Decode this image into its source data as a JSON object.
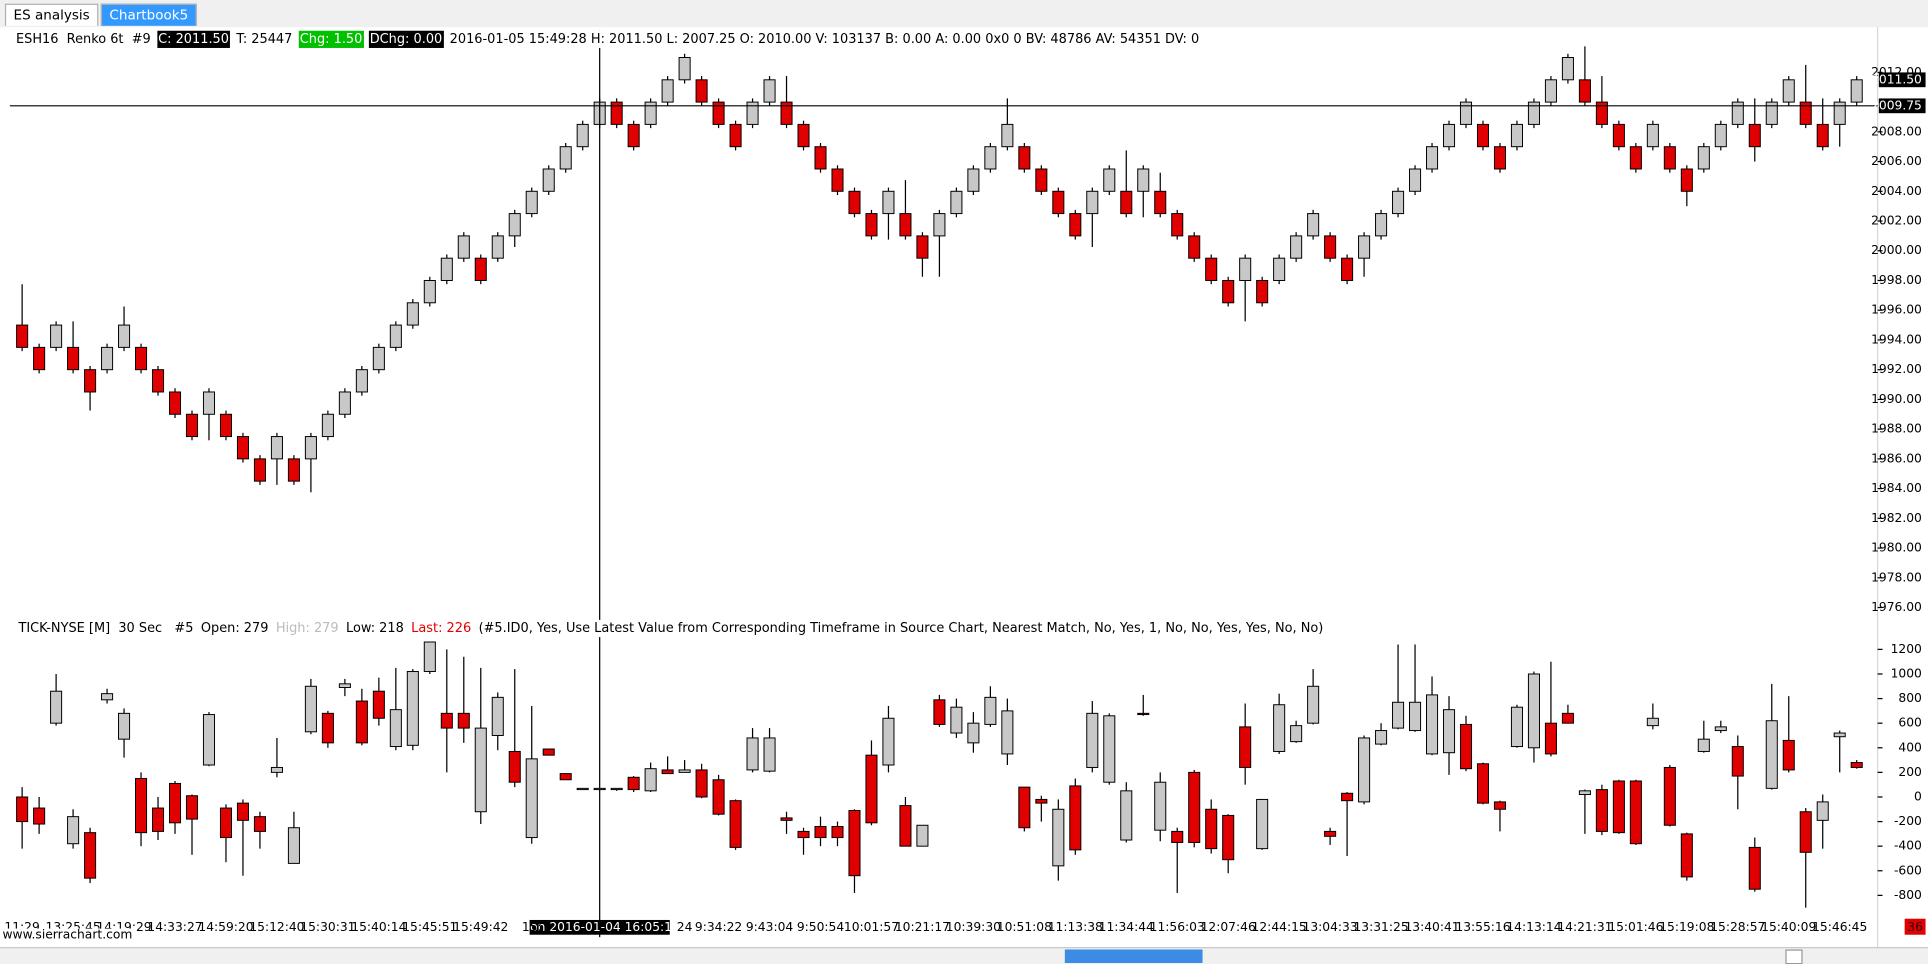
{
  "tabs": [
    {
      "label": "ES analysis",
      "selected": false
    },
    {
      "label": "Chartbook5",
      "selected": true
    }
  ],
  "watermark": "www.sierrachart.com",
  "chart_data": [
    {
      "type": "candlestick",
      "title": "ESH16  Renko 6t  #9",
      "info": [
        {
          "text": "C: 2011.50",
          "color": "#ffffff",
          "background": "#000000"
        },
        {
          "text": "T: 25447",
          "color": "#000000",
          "background": "#ffffff"
        },
        {
          "text": "Chg: 1.50",
          "color": "#ffffff",
          "background": "#00c000"
        },
        {
          "text": "DChg: 0.00",
          "color": "#ffffff",
          "background": "#000000"
        },
        {
          "text": "2016-01-05 15:49:28 H: 2011.50 L: 2007.25 O: 2010.00 V: 103137 B: 0.00 A: 0.00 0x0 0 BV: 48786 AV: 54351 DV: 0",
          "color": "#000000",
          "background": "#ffffff"
        }
      ],
      "open": [
        1995,
        1993.5,
        1993.5,
        1993.5,
        1992,
        1992,
        1993.5,
        1993.5,
        1992,
        1990.5,
        1989,
        1989,
        1989,
        1987.5,
        1986,
        1986,
        1986,
        1986,
        1987.5,
        1989,
        1990.5,
        1992,
        1993.5,
        1995,
        1996.5,
        1998,
        1999.5,
        1999.5,
        1999.5,
        2001,
        2002.5,
        2004,
        2005.5,
        2007,
        2008.5,
        2010,
        2008.5,
        2008.5,
        2010,
        2011.5,
        2011.5,
        2010,
        2008.5,
        2008.5,
        2010,
        2010,
        2008.5,
        2007,
        2005.5,
        2004,
        2002.5,
        2002.5,
        2002.5,
        2001,
        2001,
        2002.5,
        2004,
        2005.5,
        2007,
        2007,
        2005.5,
        2004,
        2002.5,
        2002.5,
        2004,
        2004,
        2004,
        2004,
        2002.5,
        2001,
        1999.5,
        1998,
        1998,
        1998,
        1998,
        1999.5,
        2001,
        2001,
        1999.5,
        1999.5,
        2001,
        2002.5,
        2004,
        2005.5,
        2007,
        2008.5,
        2008.5,
        2007,
        2007,
        2008.5,
        2010,
        2011.5,
        2011.5,
        2010,
        2008.5,
        2007,
        2007,
        2007,
        2005.5,
        2005.5,
        2007,
        2008.5,
        2008.5,
        2008.5,
        2010,
        2010,
        2008.5,
        2008.5,
        2010
      ],
      "high": [
        1997.75,
        1993.75,
        1995.25,
        1995.25,
        1992.25,
        1993.75,
        1996.25,
        1993.75,
        1992.25,
        1990.75,
        1989.25,
        1990.75,
        1989.25,
        1987.75,
        1986.25,
        1987.75,
        1986.25,
        1987.75,
        1989.25,
        1990.75,
        1992.25,
        1993.75,
        1995.25,
        1996.75,
        1998.25,
        1999.75,
        2001.25,
        1999.75,
        2001.25,
        2002.75,
        2004.25,
        2005.75,
        2007.25,
        2008.75,
        2010.25,
        2010.25,
        2008.75,
        2010.25,
        2011.75,
        2013.25,
        2011.75,
        2010.25,
        2008.75,
        2010.25,
        2011.75,
        2011.75,
        2008.75,
        2007.25,
        2005.75,
        2004.25,
        2002.75,
        2004.25,
        2004.75,
        2001.25,
        2002.75,
        2004.25,
        2005.75,
        2007.25,
        2010.25,
        2007.25,
        2005.75,
        2004.25,
        2002.75,
        2004.25,
        2005.75,
        2006.75,
        2005.75,
        2005.25,
        2002.75,
        2001.25,
        1999.75,
        1998.25,
        1999.75,
        1998.25,
        1999.75,
        2001.25,
        2002.75,
        2001.25,
        1999.75,
        2001.25,
        2002.75,
        2004.25,
        2005.75,
        2007.25,
        2008.75,
        2010.25,
        2008.75,
        2007.25,
        2008.75,
        2010.25,
        2011.75,
        2013.25,
        2013.75,
        2011.75,
        2008.75,
        2007.25,
        2008.75,
        2007.25,
        2005.75,
        2007.25,
        2008.75,
        2010.25,
        2010.25,
        2010.25,
        2011.75,
        2012.5,
        2010.25,
        2010.25,
        2011.75
      ],
      "low": [
        1993.25,
        1991.75,
        1993.25,
        1991.75,
        1989.25,
        1991.75,
        1993.25,
        1991.75,
        1990.25,
        1988.75,
        1987.25,
        1987.25,
        1987.25,
        1985.75,
        1984.25,
        1984.25,
        1984.25,
        1983.75,
        1987.25,
        1988.75,
        1990.25,
        1991.75,
        1993.25,
        1994.75,
        1996.25,
        1997.75,
        1999.25,
        1997.75,
        1999.25,
        2000.25,
        2002.25,
        2003.75,
        2005.25,
        2006.75,
        2008.25,
        2008.25,
        2006.75,
        2008.25,
        2009.75,
        2011.25,
        2009.75,
        2008.25,
        2006.75,
        2008.25,
        2009.75,
        2008.25,
        2006.75,
        2005.25,
        2003.75,
        2002.25,
        2000.75,
        2000.75,
        2000.75,
        1998.25,
        1998.25,
        2002.25,
        2003.75,
        2005.25,
        2006.75,
        2005.25,
        2003.75,
        2002.25,
        2000.75,
        2000.25,
        2003.75,
        2002.25,
        2002.25,
        2002.25,
        2000.75,
        1999.25,
        1997.75,
        1996.25,
        1995.25,
        1996.25,
        1997.75,
        1999.25,
        2000.75,
        1999.25,
        1997.75,
        1998.25,
        2000.75,
        2002.25,
        2003.75,
        2005.25,
        2006.75,
        2008.25,
        2006.75,
        2005.25,
        2006.75,
        2008.25,
        2009.75,
        2011.25,
        2009.75,
        2008.25,
        2006.75,
        2005.25,
        2006.75,
        2005.25,
        2003.0,
        2005.25,
        2006.75,
        2008.25,
        2006.0,
        2008.25,
        2009.75,
        2008.25,
        2006.75,
        2007.0,
        2009.75
      ],
      "close": [
        1993.5,
        1992,
        1995,
        1992,
        1990.5,
        1993.5,
        1995,
        1992,
        1990.5,
        1989,
        1987.5,
        1990.5,
        1987.5,
        1986,
        1984.5,
        1987.5,
        1984.5,
        1987.5,
        1989,
        1990.5,
        1992,
        1993.5,
        1995,
        1996.5,
        1998,
        1999.5,
        2001,
        1998,
        2001,
        2002.5,
        2004,
        2005.5,
        2007,
        2008.5,
        2010,
        2008.5,
        2007,
        2010,
        2011.5,
        2013,
        2010,
        2008.5,
        2007,
        2010,
        2011.5,
        2008.5,
        2007,
        2005.5,
        2004,
        2002.5,
        2001,
        2004,
        2001,
        1999.5,
        2002.5,
        2004,
        2005.5,
        2007,
        2008.5,
        2005.5,
        2004,
        2002.5,
        2001,
        2004,
        2005.5,
        2002.5,
        2005.5,
        2002.5,
        2001,
        1999.5,
        1998,
        1996.5,
        1999.5,
        1996.5,
        1999.5,
        2001,
        2002.5,
        1999.5,
        1998,
        2001,
        2002.5,
        2004,
        2005.5,
        2007,
        2008.5,
        2010,
        2007,
        2005.5,
        2008.5,
        2010,
        2011.5,
        2013,
        2010,
        2008.5,
        2007,
        2005.5,
        2008.5,
        2005.5,
        2004,
        2007,
        2008.5,
        2010,
        2007,
        2010,
        2011.5,
        2008.5,
        2007,
        2010,
        2011.5
      ],
      "up_color": "#c8c8c8",
      "down_color": "#e00000",
      "ylim": [
        1975.5,
        2014.8
      ],
      "yticks": [
        {
          "value": 2012,
          "label": "2012.00"
        },
        {
          "value": 2008,
          "label": "2008.00"
        },
        {
          "value": 2006,
          "label": "2006.00"
        },
        {
          "value": 2004,
          "label": "2004.00"
        },
        {
          "value": 2002,
          "label": "2002.00"
        },
        {
          "value": 2000,
          "label": "2000.00"
        },
        {
          "value": 1998,
          "label": "1998.00"
        },
        {
          "value": 1996,
          "label": "1996.00"
        },
        {
          "value": 1994,
          "label": "1994.00"
        },
        {
          "value": 1992,
          "label": "1992.00"
        },
        {
          "value": 1990,
          "label": "1990.00"
        },
        {
          "value": 1988,
          "label": "1988.00"
        },
        {
          "value": 1986,
          "label": "1986.00"
        },
        {
          "value": 1984,
          "label": "1984.00"
        },
        {
          "value": 1982,
          "label": "1982.00"
        },
        {
          "value": 1980,
          "label": "1980.00"
        },
        {
          "value": 1978,
          "label": "1978.00"
        },
        {
          "value": 1976,
          "label": "1976.00"
        }
      ],
      "last_price": {
        "value": 2011.5,
        "label": "2011.50"
      },
      "crosshair": {
        "value": 2009.75,
        "label": "2009.75",
        "index": 34
      }
    },
    {
      "type": "candlestick",
      "title": "TICK-NYSE [M]  30 Sec   #5",
      "info": [
        {
          "text": "Open: 279",
          "color": "#000000",
          "background": "#ffffff"
        },
        {
          "text": "High: 279",
          "color": "#bbbbbb",
          "background": "#ffffff"
        },
        {
          "text": "Low: 218",
          "color": "#000000",
          "background": "#ffffff"
        },
        {
          "text": "Last: 226",
          "color": "#e00000",
          "background": "#ffffff"
        },
        {
          "text": "(#5.ID0, Yes, Use Latest Value from Corresponding Timeframe in Source Chart, Nearest Match, No, Yes, 1, No, No, Yes, Yes, No, No)",
          "color": "#000000",
          "background": "#ffffff"
        }
      ],
      "open": [
        0,
        -90,
        600,
        -380,
        -290,
        790,
        470,
        150,
        -90,
        110,
        10,
        260,
        -90,
        -50,
        -160,
        200,
        -540,
        530,
        680,
        890,
        780,
        860,
        410,
        420,
        1020,
        680,
        680,
        -120,
        500,
        370,
        -330,
        390,
        190,
        60,
        60,
        60,
        160,
        50,
        220,
        200,
        220,
        140,
        -30,
        220,
        210,
        -170,
        -280,
        -240,
        -240,
        -110,
        340,
        260,
        -70,
        -400,
        790,
        520,
        440,
        590,
        350,
        80,
        -20,
        -560,
        90,
        240,
        120,
        -350,
        680,
        -270,
        -280,
        200,
        -100,
        -150,
        570,
        -420,
        370,
        450,
        600,
        -280,
        30,
        -40,
        430,
        560,
        540,
        350,
        360,
        590,
        270,
        -40,
        410,
        400,
        600,
        680,
        20,
        60,
        130,
        130,
        580,
        240,
        -300,
        370,
        540,
        410,
        -410,
        70,
        460,
        -120,
        -190,
        490,
        280
      ],
      "high": [
        80,
        0,
        1000,
        -100,
        -250,
        880,
        720,
        200,
        0,
        130,
        20,
        690,
        -60,
        -20,
        -120,
        480,
        -120,
        960,
        700,
        960,
        880,
        970,
        1050,
        1040,
        1260,
        1200,
        1140,
        1050,
        850,
        1040,
        740,
        390,
        190,
        70,
        70,
        70,
        170,
        280,
        330,
        300,
        270,
        180,
        -20,
        560,
        560,
        -120,
        -250,
        -160,
        -200,
        -100,
        460,
        740,
        0,
        -230,
        830,
        800,
        690,
        900,
        800,
        80,
        10,
        -20,
        150,
        780,
        680,
        120,
        830,
        200,
        -250,
        220,
        -20,
        -140,
        760,
        -20,
        840,
        620,
        1040,
        -250,
        40,
        500,
        600,
        1240,
        1240,
        980,
        820,
        660,
        280,
        -30,
        750,
        1020,
        1100,
        750,
        60,
        100,
        140,
        140,
        760,
        260,
        -290,
        620,
        620,
        500,
        -330,
        920,
        820,
        -90,
        20,
        540,
        300
      ],
      "low": [
        -420,
        -300,
        580,
        -420,
        -700,
        760,
        320,
        -400,
        -350,
        -300,
        -470,
        250,
        -530,
        -640,
        -420,
        160,
        -540,
        510,
        400,
        820,
        420,
        580,
        380,
        380,
        1000,
        200,
        440,
        -220,
        380,
        80,
        -380,
        340,
        140,
        60,
        60,
        50,
        40,
        40,
        190,
        200,
        -10,
        -150,
        -430,
        200,
        200,
        -300,
        -470,
        -400,
        -400,
        -780,
        -230,
        200,
        -400,
        -400,
        570,
        480,
        360,
        570,
        260,
        -280,
        -200,
        -680,
        -470,
        200,
        100,
        -370,
        660,
        -360,
        -780,
        -410,
        -460,
        -620,
        100,
        -430,
        350,
        440,
        590,
        -390,
        -480,
        -60,
        420,
        550,
        530,
        340,
        180,
        210,
        -60,
        -280,
        400,
        280,
        330,
        600,
        -300,
        -310,
        -300,
        -390,
        550,
        -240,
        -680,
        360,
        520,
        -100,
        -770,
        60,
        200,
        -900,
        -420,
        200,
        230
      ],
      "close": [
        -200,
        -220,
        860,
        -160,
        -660,
        840,
        680,
        -290,
        -280,
        -210,
        -180,
        670,
        -330,
        -190,
        -280,
        240,
        -250,
        900,
        440,
        920,
        440,
        640,
        710,
        1020,
        1260,
        560,
        560,
        560,
        810,
        120,
        310,
        340,
        140,
        70,
        70,
        70,
        60,
        230,
        190,
        220,
        0,
        -140,
        -410,
        480,
        480,
        -190,
        -330,
        -330,
        -330,
        -640,
        -210,
        640,
        -400,
        -230,
        590,
        730,
        600,
        810,
        700,
        -250,
        -50,
        -100,
        -430,
        680,
        660,
        50,
        670,
        120,
        -370,
        -370,
        -420,
        -510,
        240,
        -20,
        750,
        580,
        900,
        -320,
        -30,
        480,
        540,
        770,
        770,
        830,
        710,
        230,
        -50,
        -100,
        730,
        1000,
        350,
        600,
        50,
        -280,
        -290,
        -380,
        640,
        -230,
        -650,
        470,
        570,
        170,
        -750,
        620,
        220,
        -450,
        -40,
        520,
        240
      ],
      "up_color": "#c8c8c8",
      "down_color": "#e00000",
      "ylim": [
        -1000,
        1300
      ],
      "yticks": [
        1200,
        1000,
        800,
        600,
        400,
        200,
        0,
        -200,
        -400,
        -600,
        -800
      ],
      "categories": [
        "11:29",
        null,
        null,
        "13:25:45",
        null,
        null,
        "14:19:29",
        null,
        null,
        "14:33:27",
        null,
        null,
        "14:59:20",
        null,
        null,
        "15:12:40",
        null,
        null,
        "15:30:31",
        null,
        null,
        "15:40:14",
        null,
        null,
        "15:45:51",
        null,
        null,
        "15:49:42",
        null,
        null,
        "15:",
        null,
        null,
        null,
        null,
        null,
        null,
        null,
        null,
        "24",
        null,
        "9:34:22",
        null,
        null,
        "9:43:04",
        null,
        null,
        "9:50:54",
        null,
        null,
        "10:01:57",
        null,
        null,
        "10:21:17",
        null,
        null,
        "10:39:30",
        null,
        null,
        "10:51:08",
        null,
        null,
        "11:13:38",
        null,
        null,
        "11:34:44",
        null,
        null,
        "11:56:03",
        null,
        null,
        "12:07:46",
        null,
        null,
        "12:44:15",
        null,
        null,
        "13:04:33",
        null,
        null,
        "13:31:25",
        null,
        null,
        "13:40:41",
        null,
        null,
        "13:55:16",
        null,
        null,
        "14:13:14",
        null,
        null,
        "14:21:31",
        null,
        null,
        "15:01:46",
        null,
        null,
        "15:19:08",
        null,
        null,
        "15:28:57",
        null,
        null,
        "15:40:09",
        null,
        null,
        "15:46:45",
        null
      ],
      "crosshair_time": "Mon 2016-01-04 16:05:19",
      "countdown": 36
    }
  ]
}
